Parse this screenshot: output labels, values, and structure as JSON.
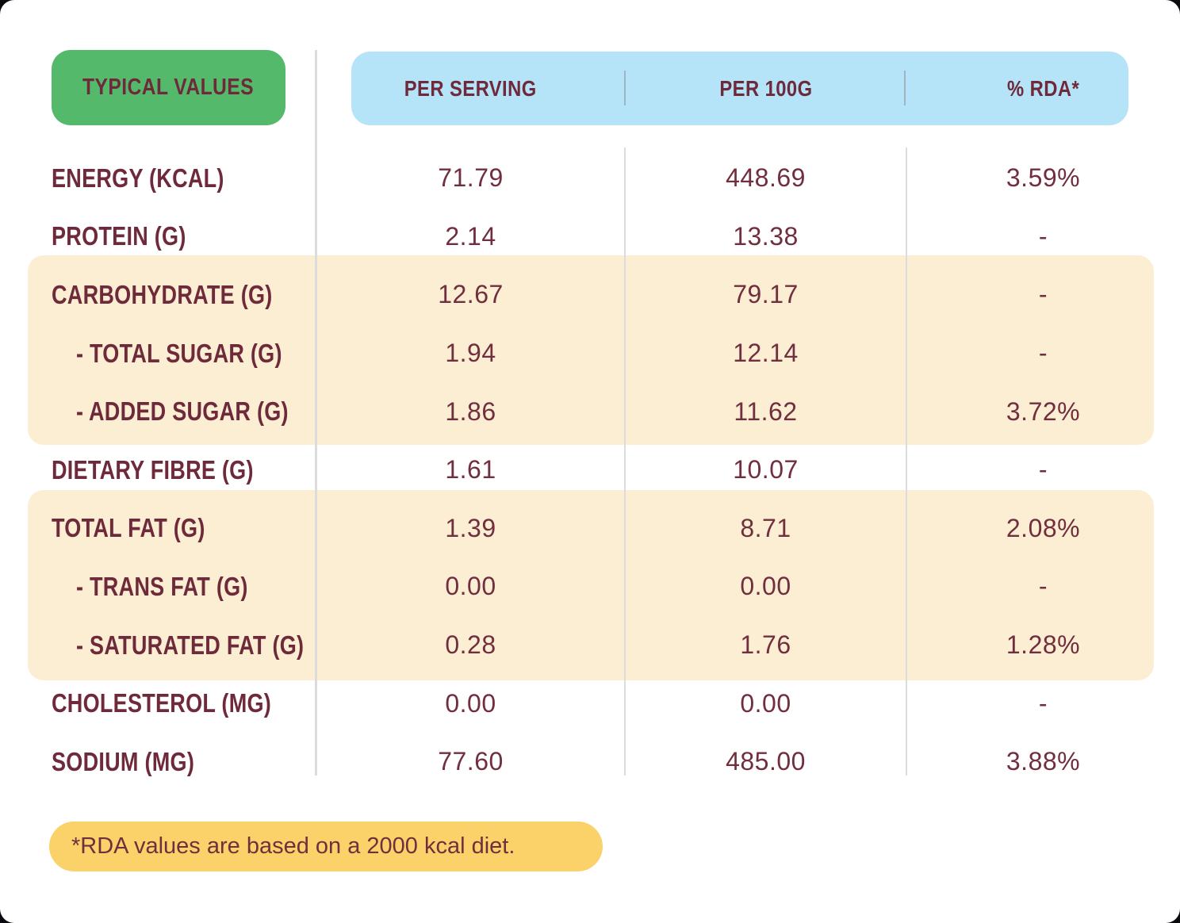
{
  "colors": {
    "green": "#55b96c",
    "blue": "#b5e4f9",
    "cream": "#fbeed3",
    "gold": "#fbd269",
    "maroon_label": "#6e2a3a",
    "maroon_value": "#712e3e",
    "divider": "#dcdcdc"
  },
  "table": {
    "corner_label": "TYPICAL VALUES",
    "columns": [
      "PER SERVING",
      "PER 100G",
      "% RDA*"
    ],
    "rows": [
      {
        "label": "ENERGY (KCAL)",
        "indent": false,
        "highlight": false,
        "per_serving": "71.79",
        "per_100g": "448.69",
        "rda": "3.59%"
      },
      {
        "label": "PROTEIN (G)",
        "indent": false,
        "highlight": false,
        "per_serving": "2.14",
        "per_100g": "13.38",
        "rda": "-"
      },
      {
        "label": "CARBOHYDRATE (G)",
        "indent": false,
        "highlight": true,
        "per_serving": "12.67",
        "per_100g": "79.17",
        "rda": "-"
      },
      {
        "label": "- TOTAL SUGAR (G)",
        "indent": true,
        "highlight": true,
        "per_serving": "1.94",
        "per_100g": "12.14",
        "rda": "-"
      },
      {
        "label": "- ADDED SUGAR (G)",
        "indent": true,
        "highlight": true,
        "per_serving": "1.86",
        "per_100g": "11.62",
        "rda": "3.72%"
      },
      {
        "label": "DIETARY FIBRE (G)",
        "indent": false,
        "highlight": false,
        "per_serving": "1.61",
        "per_100g": "10.07",
        "rda": "-"
      },
      {
        "label": "TOTAL FAT (G)",
        "indent": false,
        "highlight": true,
        "per_serving": "1.39",
        "per_100g": "8.71",
        "rda": "2.08%"
      },
      {
        "label": "- TRANS FAT (G)",
        "indent": true,
        "highlight": true,
        "per_serving": "0.00",
        "per_100g": "0.00",
        "rda": "-"
      },
      {
        "label": "- SATURATED FAT (G)",
        "indent": true,
        "highlight": true,
        "per_serving": "0.28",
        "per_100g": "1.76",
        "rda": "1.28%"
      },
      {
        "label": "CHOLESTEROL (MG)",
        "indent": false,
        "highlight": false,
        "per_serving": "0.00",
        "per_100g": "0.00",
        "rda": "-"
      },
      {
        "label": "SODIUM (MG)",
        "indent": false,
        "highlight": false,
        "per_serving": "77.60",
        "per_100g": "485.00",
        "rda": "3.88%"
      }
    ]
  },
  "footnote": "*RDA values are based on a 2000 kcal diet."
}
